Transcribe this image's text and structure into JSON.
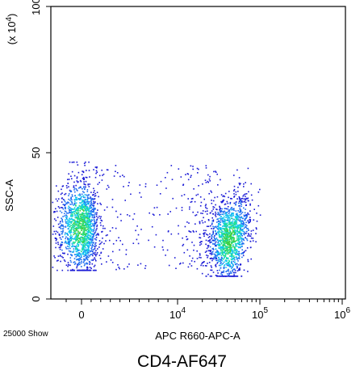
{
  "chart_data": {
    "type": "scatter",
    "title": "",
    "xlabel": "APC R660-APC-A",
    "ylabel": "SSC-A",
    "y_scale_note": "(x 10^4)",
    "x_scale": "biexponential",
    "xlim": [
      -2000,
      1000000
    ],
    "ylim": [
      0,
      100
    ],
    "x_ticks": [
      {
        "value": 0,
        "label": "0"
      },
      {
        "value": 10000,
        "label": "10",
        "exponent": "4"
      },
      {
        "value": 100000,
        "label": "10",
        "exponent": "5"
      },
      {
        "value": 1000000,
        "label": "10",
        "exponent": "6"
      }
    ],
    "y_ticks": [
      {
        "value": 0,
        "label": "0"
      },
      {
        "value": 50,
        "label": "50"
      },
      {
        "value": 100,
        "label": "100"
      }
    ],
    "populations": [
      {
        "name": "",
        "x_center": 0,
        "y_center": 25,
        "x_spread": 1500,
        "y_spread": 8,
        "y_min": 10,
        "y_max": 47,
        "density": "high"
      },
      {
        "name": "",
        "x_center": 42000,
        "y_center": 20,
        "x_spread": 0.18,
        "y_spread": 7,
        "y_min": 8,
        "y_max": 47,
        "density": "high"
      },
      {
        "name": "",
        "x_range": [
          1500,
          30000
        ],
        "y_range": [
          10,
          46
        ],
        "density": "sparse"
      }
    ],
    "colormap": [
      "#1a1ad6",
      "#1e6ef0",
      "#10c8f0",
      "#20e090",
      "#40d040"
    ],
    "grid": false
  },
  "event_count": "25000 Show",
  "caption": "CD4-AF647"
}
